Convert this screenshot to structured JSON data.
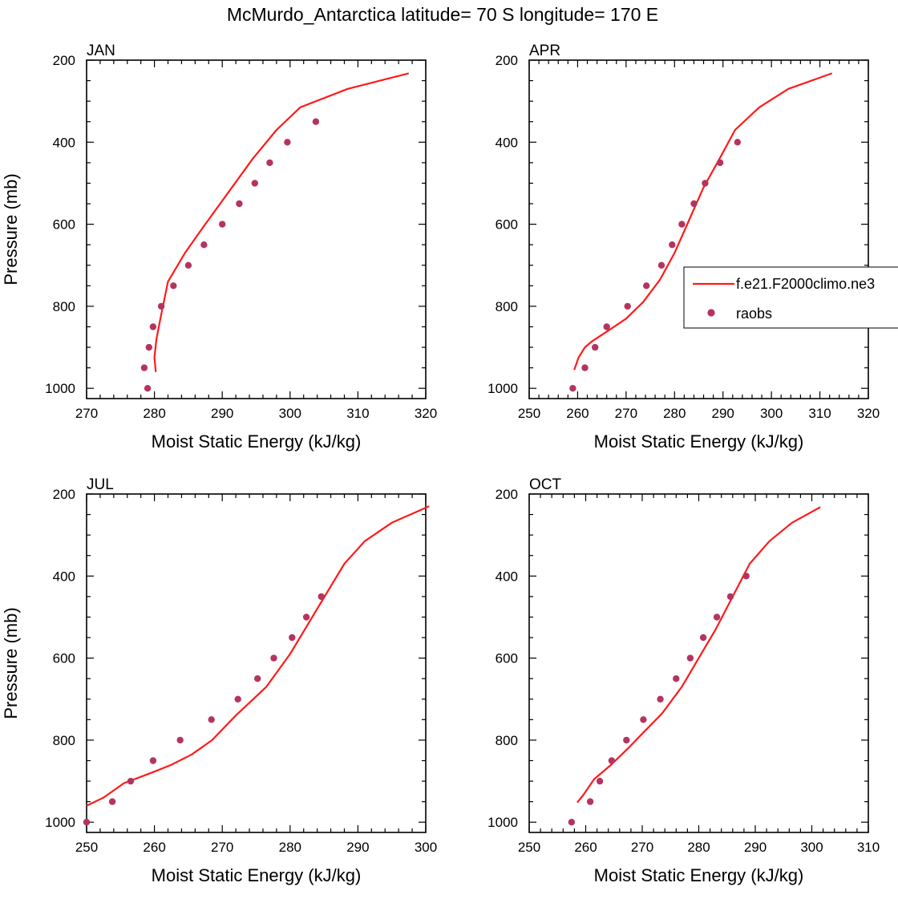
{
  "title": "McMurdo_Antarctica  latitude= 70 S longitude= 170 E",
  "colors": {
    "model_line": "#ff1a1a",
    "raobs_marker": "#b5345f",
    "axis": "#000000"
  },
  "legend": {
    "placement": "right of APR panel",
    "entries": [
      {
        "label": "f.e21.F2000climo.ne3",
        "style": "line"
      },
      {
        "label": "raobs",
        "style": "marker"
      }
    ]
  },
  "chart_data": [
    {
      "type": "line",
      "panel": "JAN",
      "xlabel": "Moist Static Energy (kJ/kg)",
      "ylabel": "Pressure (mb)",
      "xlim": [
        270,
        320
      ],
      "ylim": [
        200,
        1025
      ],
      "y_reversed": true,
      "xticks": [
        270,
        280,
        290,
        300,
        310,
        320
      ],
      "yticks": [
        200,
        400,
        600,
        800,
        1000
      ],
      "series": [
        {
          "style": "line",
          "x": [
            280.2,
            280.0,
            280.3,
            281.0,
            282.0,
            284.5,
            287.5,
            291.0,
            294.5,
            298.0,
            301.5,
            308.5,
            317.5
          ],
          "y": [
            960,
            925,
            880,
            820,
            740,
            670,
            600,
            520,
            440,
            370,
            315,
            270,
            232
          ]
        },
        {
          "style": "marker",
          "x": [
            279.0,
            278.5,
            279.2,
            279.8,
            281.0,
            282.8,
            285.0,
            287.3,
            290.0,
            292.5,
            294.8,
            297.0,
            299.6,
            303.8
          ],
          "y": [
            1000,
            950,
            900,
            850,
            800,
            750,
            700,
            650,
            600,
            550,
            500,
            450,
            400,
            350
          ]
        }
      ]
    },
    {
      "type": "line",
      "panel": "APR",
      "xlabel": "Moist Static Energy (kJ/kg)",
      "ylabel": "",
      "xlim": [
        250,
        320
      ],
      "ylim": [
        200,
        1025
      ],
      "y_reversed": true,
      "xticks": [
        250,
        260,
        270,
        280,
        290,
        300,
        310,
        320
      ],
      "yticks": [
        200,
        400,
        600,
        800,
        1000
      ],
      "series": [
        {
          "style": "line",
          "x": [
            259.3,
            260.2,
            261.5,
            263.0,
            266.0,
            270.0,
            273.5,
            277.0,
            280.0,
            283.0,
            286.0,
            289.3,
            292.5,
            297.5,
            303.5,
            312.5
          ],
          "y": [
            955,
            925,
            900,
            885,
            862,
            830,
            790,
            735,
            670,
            590,
            510,
            440,
            370,
            315,
            270,
            232
          ]
        },
        {
          "style": "marker",
          "x": [
            259.0,
            261.5,
            263.6,
            266.0,
            270.3,
            274.2,
            277.3,
            279.5,
            281.5,
            284.0,
            286.3,
            289.4,
            293.0
          ],
          "y": [
            1000,
            950,
            900,
            850,
            800,
            750,
            700,
            650,
            600,
            550,
            500,
            450,
            400
          ]
        }
      ]
    },
    {
      "type": "line",
      "panel": "JUL",
      "xlabel": "Moist Static Energy (kJ/kg)",
      "ylabel": "Pressure (mb)",
      "xlim": [
        250,
        300
      ],
      "ylim": [
        200,
        1025
      ],
      "y_reversed": true,
      "xticks": [
        250,
        260,
        270,
        280,
        290,
        300
      ],
      "yticks": [
        200,
        400,
        600,
        800,
        1000
      ],
      "series": [
        {
          "style": "line",
          "x": [
            250.0,
            252.5,
            255.5,
            259.5,
            262.5,
            265.5,
            268.5,
            272.0,
            276.5,
            280.0,
            284.0,
            288.0,
            291.0,
            295.0,
            300.5
          ],
          "y": [
            960,
            940,
            905,
            880,
            860,
            835,
            800,
            740,
            670,
            590,
            480,
            370,
            315,
            270,
            230
          ]
        },
        {
          "style": "marker",
          "x": [
            250.0,
            253.8,
            256.5,
            259.8,
            263.8,
            268.4,
            272.3,
            275.2,
            277.6,
            280.3,
            282.4,
            284.6
          ],
          "y": [
            1000,
            950,
            900,
            850,
            800,
            750,
            700,
            650,
            600,
            550,
            500,
            450
          ]
        }
      ]
    },
    {
      "type": "line",
      "panel": "OCT",
      "xlabel": "Moist Static Energy (kJ/kg)",
      "ylabel": "",
      "xlim": [
        250,
        310
      ],
      "ylim": [
        200,
        1025
      ],
      "y_reversed": true,
      "xticks": [
        250,
        260,
        270,
        280,
        290,
        300,
        310
      ],
      "yticks": [
        200,
        400,
        600,
        800,
        1000
      ],
      "series": [
        {
          "style": "line",
          "x": [
            258.5,
            259.5,
            261.5,
            264.5,
            267.5,
            270.3,
            273.5,
            277.0,
            280.0,
            283.0,
            286.0,
            289.0,
            292.5,
            296.5,
            301.5
          ],
          "y": [
            952,
            935,
            895,
            860,
            820,
            780,
            735,
            670,
            600,
            530,
            450,
            370,
            315,
            270,
            232
          ]
        },
        {
          "style": "marker",
          "x": [
            257.5,
            260.8,
            262.5,
            264.6,
            267.2,
            270.2,
            273.2,
            276.0,
            278.5,
            280.8,
            283.2,
            285.6,
            288.4
          ],
          "y": [
            1000,
            950,
            900,
            850,
            800,
            750,
            700,
            650,
            600,
            550,
            500,
            450,
            400
          ]
        }
      ]
    }
  ]
}
